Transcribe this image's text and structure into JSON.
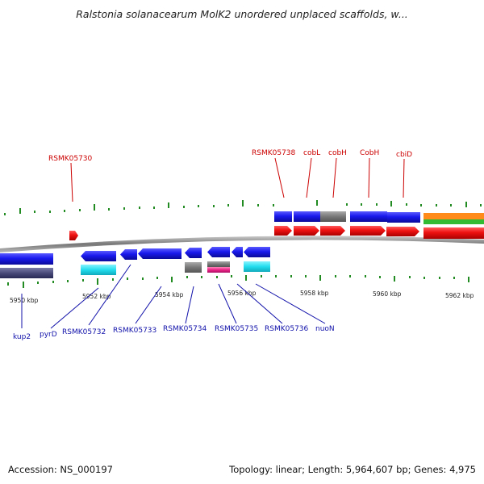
{
  "title": "Ralstonia solanacearum MolK2 unordered unplaced scaffolds, w...",
  "footer": {
    "accession": "Accession: NS_000197",
    "topology": "Topology: linear; Length: 5,964,607 bp; Genes: 4,975"
  },
  "colors": {
    "forward_gene": "#ee1111",
    "reverse_gene": "#1a1aee",
    "cds_blue": "#1a1aee",
    "pseudo_gray": "#777777",
    "cyan": "#22ddee",
    "magenta": "#ee2288",
    "orange": "#ff8c1a",
    "green": "#33bb33",
    "tick_green": "#228b22",
    "backbone": "#888888"
  },
  "scale_labels": [
    "5950 kbp",
    "5952 kbp",
    "5954 kbp",
    "5956 kbp",
    "5958 kbp",
    "5960 kbp",
    "5962 kbp"
  ],
  "top_labels": [
    "RSMK05730",
    "RSMK05738",
    "cobL",
    "cobH",
    "CobH",
    "cbiD"
  ],
  "bottom_labels": [
    "kup2",
    "pyrD",
    "RSMK05732",
    "RSMK05733",
    "RSMK05734",
    "RSMK05735",
    "RSMK05736",
    "nuoN"
  ]
}
